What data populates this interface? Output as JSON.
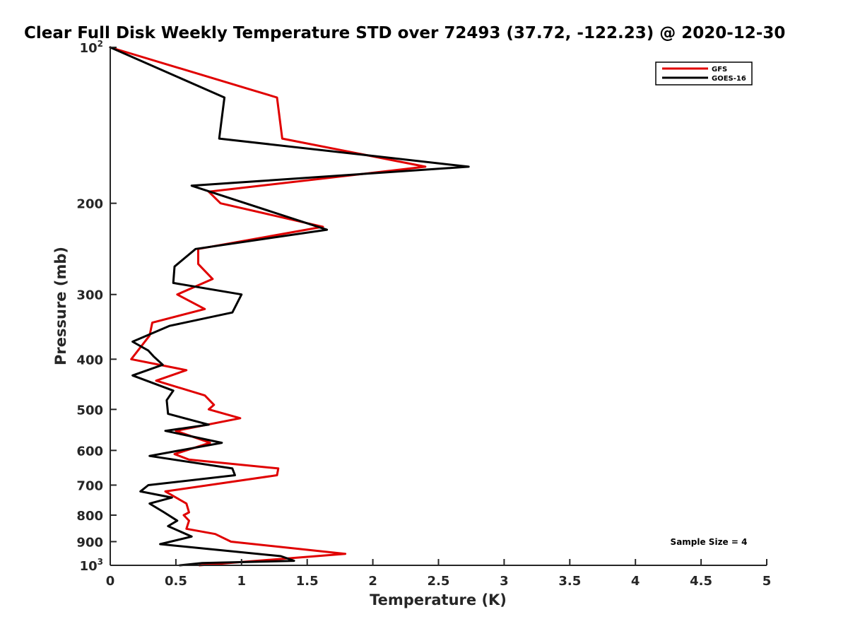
{
  "chart_data": {
    "type": "line",
    "title": "Clear Full Disk Weekly Temperature STD over 72493 (37.72, -122.23) @ 2020-12-30",
    "xlabel": "Temperature (K)",
    "ylabel": "Pressure (mb)",
    "xlim": [
      0,
      5
    ],
    "ylim": [
      100,
      1000
    ],
    "yscale": "log",
    "y_reversed": true,
    "x_ticks": [
      0,
      0.5,
      1,
      1.5,
      2,
      2.5,
      3,
      3.5,
      4,
      4.5,
      5
    ],
    "x_tick_labels": [
      "0",
      "0.5",
      "1",
      "1.5",
      "2",
      "2.5",
      "3",
      "3.5",
      "4",
      "4.5",
      "5"
    ],
    "y_ticks": [
      {
        "value": 100,
        "base": "10",
        "exp": "2"
      },
      {
        "value": 200,
        "label": "200"
      },
      {
        "value": 300,
        "label": "300"
      },
      {
        "value": 400,
        "label": "400"
      },
      {
        "value": 500,
        "label": "500"
      },
      {
        "value": 600,
        "label": "600"
      },
      {
        "value": 700,
        "label": "700"
      },
      {
        "value": 800,
        "label": "800"
      },
      {
        "value": 900,
        "label": "900"
      },
      {
        "value": 1000,
        "base": "10",
        "exp": "3"
      }
    ],
    "legend": "top-right",
    "grid": false,
    "annotation": "Sample Size = 4",
    "series": [
      {
        "name": "GFS",
        "color": "#e00000",
        "points": [
          [
            0.0,
            100
          ],
          [
            1.27,
            125
          ],
          [
            1.31,
            150
          ],
          [
            2.4,
            170
          ],
          [
            0.75,
            190
          ],
          [
            0.84,
            200
          ],
          [
            1.62,
            222
          ],
          [
            0.67,
            245
          ],
          [
            0.67,
            262
          ],
          [
            0.78,
            280
          ],
          [
            0.51,
            300
          ],
          [
            0.72,
            320
          ],
          [
            0.32,
            340
          ],
          [
            0.3,
            360
          ],
          [
            0.16,
            400
          ],
          [
            0.58,
            420
          ],
          [
            0.35,
            440
          ],
          [
            0.72,
            470
          ],
          [
            0.79,
            490
          ],
          [
            0.75,
            500
          ],
          [
            0.99,
            520
          ],
          [
            0.5,
            550
          ],
          [
            0.76,
            580
          ],
          [
            0.49,
            610
          ],
          [
            0.6,
            625
          ],
          [
            1.28,
            650
          ],
          [
            1.27,
            670
          ],
          [
            0.42,
            720
          ],
          [
            0.58,
            760
          ],
          [
            0.6,
            790
          ],
          [
            0.56,
            800
          ],
          [
            0.6,
            820
          ],
          [
            0.58,
            850
          ],
          [
            0.8,
            870
          ],
          [
            0.92,
            900
          ],
          [
            1.79,
            950
          ],
          [
            0.68,
            1000
          ]
        ]
      },
      {
        "name": "GOES-16",
        "color": "#000000",
        "points": [
          [
            0.0,
            100
          ],
          [
            0.87,
            125
          ],
          [
            0.83,
            150
          ],
          [
            2.73,
            170
          ],
          [
            0.62,
            185
          ],
          [
            1.65,
            225
          ],
          [
            0.65,
            245
          ],
          [
            0.49,
            265
          ],
          [
            0.48,
            285
          ],
          [
            1.0,
            300
          ],
          [
            0.93,
            325
          ],
          [
            0.45,
            345
          ],
          [
            0.17,
            370
          ],
          [
            0.29,
            385
          ],
          [
            0.33,
            395
          ],
          [
            0.4,
            410
          ],
          [
            0.17,
            430
          ],
          [
            0.48,
            460
          ],
          [
            0.43,
            480
          ],
          [
            0.44,
            510
          ],
          [
            0.75,
            535
          ],
          [
            0.42,
            550
          ],
          [
            0.85,
            580
          ],
          [
            0.3,
            615
          ],
          [
            0.93,
            650
          ],
          [
            0.95,
            670
          ],
          [
            0.29,
            700
          ],
          [
            0.23,
            720
          ],
          [
            0.47,
            740
          ],
          [
            0.3,
            760
          ],
          [
            0.41,
            790
          ],
          [
            0.51,
            820
          ],
          [
            0.44,
            840
          ],
          [
            0.62,
            880
          ],
          [
            0.38,
            910
          ],
          [
            0.75,
            930
          ],
          [
            1.3,
            960
          ],
          [
            1.4,
            980
          ],
          [
            0.7,
            990
          ],
          [
            0.53,
            1000
          ]
        ]
      }
    ]
  }
}
